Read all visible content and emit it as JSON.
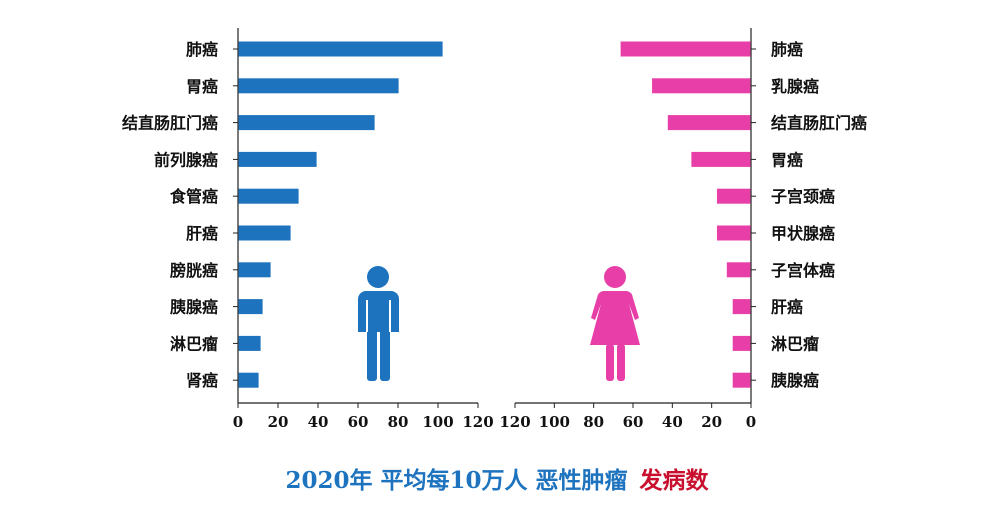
{
  "title": {
    "main": "2020年 平均每10万人 恶性肿瘤",
    "accent": "发病数",
    "main_color": "#1E73BE",
    "accent_color": "#C8102E"
  },
  "chart_data": [
    {
      "type": "bar",
      "orientation": "horizontal",
      "side": "male",
      "color": "#1E73BE",
      "icon": "male-figure-icon",
      "categories": [
        "肺癌",
        "胃癌",
        "结直肠肛门癌",
        "前列腺癌",
        "食管癌",
        "肝癌",
        "膀胱癌",
        "胰腺癌",
        "淋巴瘤",
        "肾癌"
      ],
      "values": [
        102,
        80,
        68,
        39,
        30,
        26,
        16,
        12,
        11,
        10
      ],
      "xlim": [
        0,
        120
      ],
      "ticks": [
        0,
        20,
        40,
        60,
        80,
        100,
        120
      ],
      "xlabel": "",
      "grid": false
    },
    {
      "type": "bar",
      "orientation": "horizontal",
      "direction": "reversed",
      "side": "female",
      "color": "#E83EA8",
      "icon": "female-figure-icon",
      "categories": [
        "肺癌",
        "乳腺癌",
        "结直肠肛门癌",
        "胃癌",
        "子宫颈癌",
        "甲状腺癌",
        "子宫体癌",
        "肝癌",
        "淋巴瘤",
        "胰腺癌"
      ],
      "values": [
        66,
        50,
        42,
        30,
        17,
        17,
        12,
        9,
        9,
        9
      ],
      "xlim": [
        0,
        120
      ],
      "ticks": [
        120,
        100,
        80,
        60,
        40,
        20,
        0
      ],
      "xlabel": "",
      "grid": false
    }
  ]
}
